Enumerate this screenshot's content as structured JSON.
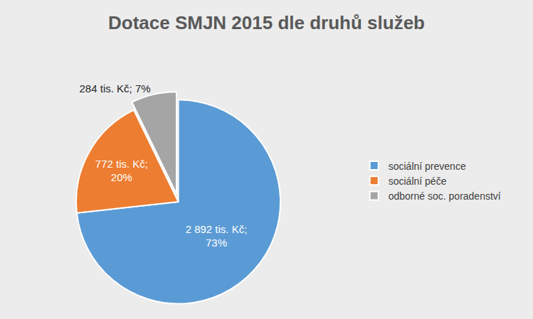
{
  "chart_data": {
    "type": "pie",
    "title": "Dotace SMJN 2015 dle druhů služeb",
    "categories": [
      "sociální prevence",
      "sociální péče",
      "odborné soc. poradenství"
    ],
    "values": [
      2892,
      772,
      284
    ],
    "value_labels": [
      "2 892 tis. Kč; 73%",
      "772 tis. Kč; 20%",
      "284 tis. Kč; 7%"
    ],
    "colors": [
      "#5B9BD5",
      "#ED7D31",
      "#A5A5A5"
    ],
    "legend": "right",
    "data_labels": true
  }
}
